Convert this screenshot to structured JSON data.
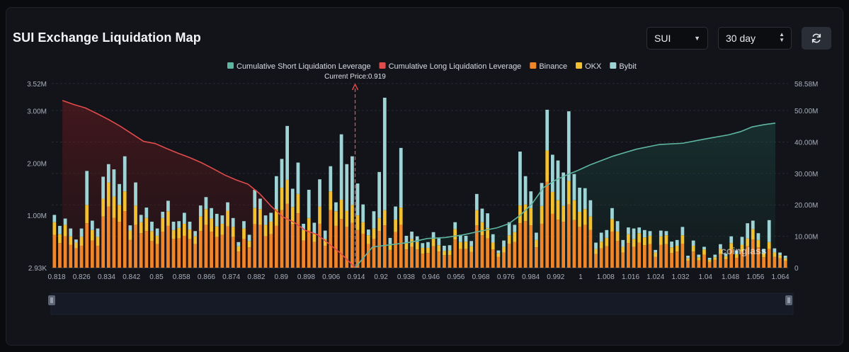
{
  "header": {
    "title": "SUI Exchange Liquidation Map",
    "coin_select": "SUI",
    "period_select": "30 day"
  },
  "colors": {
    "short_line": "#5fb6a0",
    "long_line": "#e04b4b",
    "binance": "#f0862a",
    "okx": "#f3c12f",
    "bybit": "#9fd4d6"
  },
  "watermark": "coinglass",
  "chart_data": {
    "type": "bar",
    "title": "SUI Exchange Liquidation Map",
    "current_price_label": "Current Price:0.919",
    "current_price": 0.919,
    "legend": [
      {
        "key": "short",
        "label": "Cumulative Short Liquidation Leverage",
        "color": "#5fb6a0"
      },
      {
        "key": "long",
        "label": "Cumulative Long Liquidation Leverage",
        "color": "#e04b4b"
      },
      {
        "key": "binance",
        "label": "Binance",
        "color": "#f0862a"
      },
      {
        "key": "okx",
        "label": "OKX",
        "color": "#f3c12f"
      },
      {
        "key": "bybit",
        "label": "Bybit",
        "color": "#9fd4d6"
      }
    ],
    "x_ticks": [
      "0.818",
      "0.826",
      "0.834",
      "0.842",
      "0.85",
      "0.858",
      "0.866",
      "0.874",
      "0.882",
      "0.89",
      "0.898",
      "0.906",
      "0.914",
      "0.92",
      "0.938",
      "0.946",
      "0.956",
      "0.968",
      "0.976",
      "0.984",
      "0.992",
      "1",
      "1.008",
      "1.016",
      "1.024",
      "1.032",
      "1.04",
      "1.048",
      "1.056",
      "1.064"
    ],
    "y_left_ticks": [
      "2.93K",
      "1.00M",
      "2.00M",
      "3.00M",
      "3.52M"
    ],
    "y_left_values": [
      0.00293,
      1.0,
      2.0,
      3.0,
      3.52
    ],
    "y_left_range": [
      0,
      3.52
    ],
    "y_right_ticks": [
      "0",
      "10.00M",
      "20.00M",
      "30.00M",
      "40.00M",
      "50.00M",
      "58.58M"
    ],
    "y_right_values": [
      0,
      10,
      20,
      30,
      40,
      50,
      58.58
    ],
    "y_right_range": [
      0,
      58.58
    ],
    "units": "M",
    "x_range": [
      0.8143,
      1.0684
    ],
    "binance": [
      0.63,
      0.47,
      0.6,
      0.44,
      0.37,
      0.42,
      0.85,
      0.52,
      0.42,
      0.98,
      1.17,
      0.95,
      0.88,
      1.08,
      0.53,
      0.82,
      0.66,
      0.7,
      0.51,
      0.45,
      0.69,
      0.8,
      0.55,
      0.56,
      0.61,
      0.55,
      0.45,
      0.7,
      0.82,
      0.69,
      0.59,
      0.63,
      0.79,
      0.59,
      0.31,
      0.55,
      0.39,
      0.83,
      0.82,
      0.6,
      0.64,
      0.8,
      1.1,
      1.22,
      0.83,
      1.04,
      0.52,
      0.71,
      0.49,
      0.84,
      0.42,
      1.1,
      0.8,
      0.93,
      0.78,
      0.86,
      0.72,
      0.65,
      0.45,
      0.55,
      0.7,
      0.81,
      0.34,
      0.68,
      0.82,
      0.35,
      0.4,
      0.35,
      0.27,
      0.28,
      0.41,
      0.31,
      0.24,
      0.24,
      0.54,
      0.36,
      0.36,
      0.3,
      0.81,
      0.62,
      0.56,
      0.35,
      0.21,
      0.29,
      0.46,
      0.49,
      0.85,
      0.89,
      0.81,
      0.39,
      0.84,
      1.64,
      1.03,
      0.92,
      0.88,
      1.21,
      0.91,
      0.78,
      0.82,
      0.72,
      0.26,
      0.37,
      0.41,
      0.69,
      0.51,
      0.29,
      0.47,
      0.4,
      0.48,
      0.43,
      0.45,
      0.21,
      0.44,
      0.45,
      0.28,
      0.31,
      0.46,
      0.13,
      0.31,
      0.14,
      0.25,
      0.11,
      0.15,
      0.26,
      0.16,
      0.35,
      0.19,
      0.31,
      0.41,
      0.54,
      0.39,
      0.2,
      0.36,
      0.21,
      0.18,
      0.13
    ],
    "okx": [
      0.24,
      0.17,
      0.22,
      0.16,
      0.11,
      0.17,
      0.35,
      0.2,
      0.17,
      0.34,
      0.46,
      0.41,
      0.32,
      0.38,
      0.18,
      0.37,
      0.21,
      0.25,
      0.19,
      0.16,
      0.26,
      0.28,
      0.17,
      0.2,
      0.23,
      0.18,
      0.15,
      0.28,
      0.3,
      0.25,
      0.2,
      0.21,
      0.3,
      0.19,
      0.1,
      0.2,
      0.12,
      0.31,
      0.3,
      0.22,
      0.24,
      0.32,
      0.43,
      0.46,
      0.33,
      0.37,
      0.2,
      0.24,
      0.16,
      0.33,
      0.13,
      0.36,
      0.28,
      0.37,
      0.31,
      0.34,
      0.28,
      0.22,
      0.17,
      0.2,
      0.25,
      0.29,
      0.11,
      0.24,
      0.33,
      0.13,
      0.15,
      0.14,
      0.11,
      0.1,
      0.15,
      0.12,
      0.08,
      0.09,
      0.2,
      0.13,
      0.14,
      0.11,
      0.29,
      0.25,
      0.2,
      0.13,
      0.07,
      0.11,
      0.16,
      0.19,
      0.34,
      0.32,
      0.33,
      0.14,
      0.34,
      0.6,
      0.42,
      0.37,
      0.3,
      0.45,
      0.38,
      0.29,
      0.3,
      0.26,
      0.1,
      0.13,
      0.16,
      0.24,
      0.18,
      0.11,
      0.17,
      0.15,
      0.18,
      0.15,
      0.16,
      0.08,
      0.16,
      0.17,
      0.11,
      0.11,
      0.16,
      0.05,
      0.11,
      0.06,
      0.1,
      0.04,
      0.05,
      0.1,
      0.06,
      0.12,
      0.07,
      0.13,
      0.15,
      0.2,
      0.14,
      0.08,
      0.13,
      0.08,
      0.06,
      0.05
    ],
    "bybit": [
      0.14,
      0.16,
      0.12,
      0.15,
      0.06,
      0.16,
      0.65,
      0.18,
      0.16,
      0.42,
      0.35,
      0.52,
      0.4,
      0.67,
      0.1,
      0.44,
      0.14,
      0.2,
      0.18,
      0.14,
      0.12,
      0.2,
      0.16,
      0.13,
      0.21,
      0.15,
      0.1,
      0.21,
      0.23,
      0.2,
      0.24,
      0.16,
      0.16,
      0.17,
      0.08,
      0.14,
      0.12,
      0.35,
      0.2,
      0.18,
      0.17,
      0.63,
      0.55,
      1.03,
      0.35,
      0.6,
      0.12,
      0.54,
      0.21,
      0.52,
      0.16,
      0.48,
      0.17,
      1.25,
      0.89,
      0.93,
      0.61,
      0.34,
      0.11,
      0.33,
      0.88,
      2.15,
      0.12,
      0.25,
      1.14,
      0.13,
      0.14,
      0.11,
      0.09,
      0.11,
      0.12,
      0.13,
      0.1,
      0.1,
      0.13,
      0.14,
      0.11,
      0.1,
      0.31,
      0.26,
      0.28,
      0.16,
      0.05,
      0.12,
      0.25,
      0.14,
      1.03,
      0.54,
      0.32,
      0.14,
      0.44,
      0.78,
      0.71,
      0.76,
      0.64,
      1.33,
      0.5,
      0.46,
      0.4,
      0.31,
      0.12,
      0.17,
      0.15,
      0.21,
      0.2,
      0.13,
      0.13,
      0.2,
      0.11,
      0.14,
      0.09,
      0.05,
      0.11,
      0.08,
      0.11,
      0.11,
      0.16,
      0.05,
      0.1,
      0.05,
      0.05,
      0.04,
      0.05,
      0.09,
      0.05,
      0.13,
      0.07,
      0.15,
      0.29,
      0.16,
      0.13,
      0.08,
      0.42,
      0.08,
      0.05,
      0.05
    ],
    "long_cumulative": {
      "x": [
        0.818,
        0.822,
        0.826,
        0.83,
        0.834,
        0.838,
        0.842,
        0.846,
        0.85,
        0.854,
        0.858,
        0.862,
        0.866,
        0.87,
        0.874,
        0.878,
        0.882,
        0.886,
        0.89,
        0.894,
        0.898,
        0.902,
        0.906,
        0.91,
        0.914,
        0.917,
        0.919
      ],
      "y": [
        53.2,
        51.9,
        50.8,
        49.0,
        47.1,
        45.0,
        42.6,
        40.2,
        39.5,
        37.9,
        36.4,
        35.0,
        33.4,
        31.5,
        29.5,
        27.9,
        26.6,
        23.6,
        19.6,
        16.2,
        14.4,
        11.8,
        10.5,
        7.6,
        4.6,
        1.9,
        0.0
      ]
    },
    "short_cumulative": {
      "x": [
        0.919,
        0.925,
        0.932,
        0.938,
        0.944,
        0.95,
        0.956,
        0.962,
        0.968,
        0.972,
        0.976,
        0.98,
        0.984,
        0.988,
        0.992,
        0.996,
        1.0,
        1.008,
        1.016,
        1.024,
        1.032,
        1.04,
        1.048,
        1.052,
        1.056,
        1.06,
        1.064
      ],
      "y": [
        0.0,
        6.6,
        7.4,
        8.1,
        9.3,
        9.6,
        10.4,
        11.6,
        12.7,
        14.0,
        16.7,
        20.3,
        25.5,
        27.8,
        29.5,
        31.0,
        32.7,
        35.5,
        37.7,
        39.2,
        39.6,
        41.0,
        42.3,
        43.3,
        44.8,
        45.5,
        46.0
      ]
    }
  }
}
